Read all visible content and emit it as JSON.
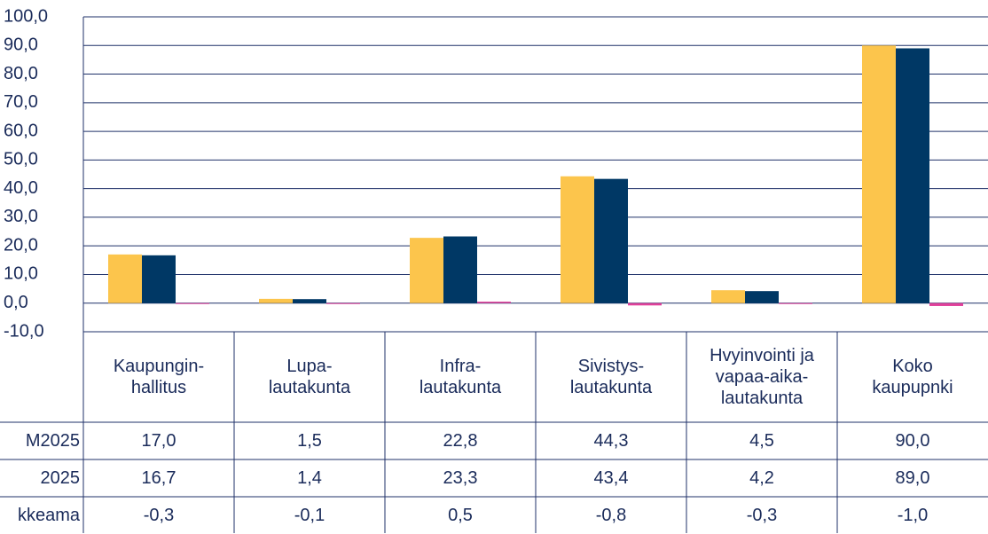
{
  "chart_data": {
    "type": "bar",
    "categories": [
      "Kaupungin-\nhallitus",
      "Lupa-\nlautakunta",
      "Infra-\nlautakunta",
      "Sivistys-\nlautakunta",
      "Hvyinvointi ja\nvapaa-aika-\nlautakunta",
      "Koko\nkaupupnki"
    ],
    "series": [
      {
        "name": "M2025",
        "color": "#fcc54c",
        "values": [
          17.0,
          1.5,
          22.8,
          44.3,
          4.5,
          90.0
        ],
        "value_labels": [
          "17,0",
          "1,5",
          "22,8",
          "44,3",
          "4,5",
          "90,0"
        ]
      },
      {
        "name": "2025",
        "color": "#003865",
        "values": [
          16.7,
          1.4,
          23.3,
          43.4,
          4.2,
          89.0
        ],
        "value_labels": [
          "16,7",
          "1,4",
          "23,3",
          "43,4",
          "4,2",
          "89,0"
        ]
      },
      {
        "name": "kkeama",
        "color": "#e0409a",
        "values": [
          -0.3,
          -0.1,
          0.5,
          -0.8,
          -0.3,
          -1.0
        ],
        "value_labels": [
          "-0,3",
          "-0,1",
          "0,5",
          "-0,8",
          "-0,3",
          "-1,0"
        ]
      }
    ],
    "ylim": [
      -10,
      100
    ],
    "yticks": [
      {
        "value": -10,
        "label": "-10,0"
      },
      {
        "value": 0,
        "label": "0,0"
      },
      {
        "value": 10,
        "label": "10,0"
      },
      {
        "value": 20,
        "label": "20,0"
      },
      {
        "value": 30,
        "label": "30,0"
      },
      {
        "value": 40,
        "label": "40,0"
      },
      {
        "value": 50,
        "label": "50,0"
      },
      {
        "value": 60,
        "label": "60,0"
      },
      {
        "value": 70,
        "label": "70,0"
      },
      {
        "value": 80,
        "label": "80,0"
      },
      {
        "value": 90,
        "label": "90,0"
      },
      {
        "value": 100,
        "label": "100,0"
      }
    ],
    "grid": true
  }
}
